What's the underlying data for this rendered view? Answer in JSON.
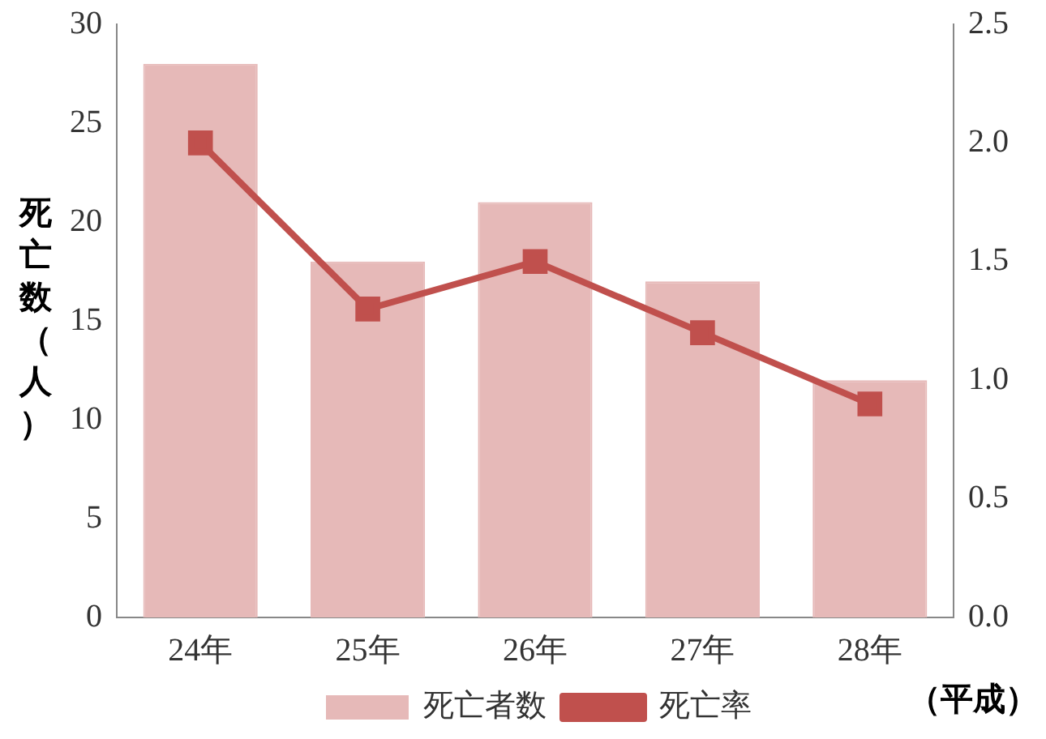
{
  "chart_data": {
    "type": "bar",
    "xlabel": "（平成）",
    "ylabel": "死亡数（人）",
    "categories": [
      "24年",
      "25年",
      "26年",
      "27年",
      "28年"
    ],
    "series": [
      {
        "name": "死亡者数",
        "color": "#e6b9b8",
        "values": [
          28,
          18,
          21,
          17,
          12
        ]
      },
      {
        "name": "死亡率",
        "type": "line",
        "axis": "y2",
        "color": "#c0504d",
        "values": [
          2.0,
          1.3,
          1.5,
          1.2,
          0.9
        ]
      }
    ],
    "ylim": [
      0,
      30
    ],
    "yticks": [
      0,
      5,
      10,
      15,
      20,
      25,
      30
    ],
    "y2lim": [
      0,
      2.5
    ],
    "y2ticks": [
      {
        "value": 0,
        "label": "0.0"
      },
      {
        "value": 0.5,
        "label": "0.5"
      },
      {
        "value": 1,
        "label": "1.0"
      },
      {
        "value": 1.5,
        "label": "1.5"
      },
      {
        "value": 2,
        "label": "2.0"
      },
      {
        "value": 2.5,
        "label": "2.5"
      }
    ],
    "grid": false,
    "legend": "bottom",
    "marker": "square",
    "line_style": "solid"
  }
}
